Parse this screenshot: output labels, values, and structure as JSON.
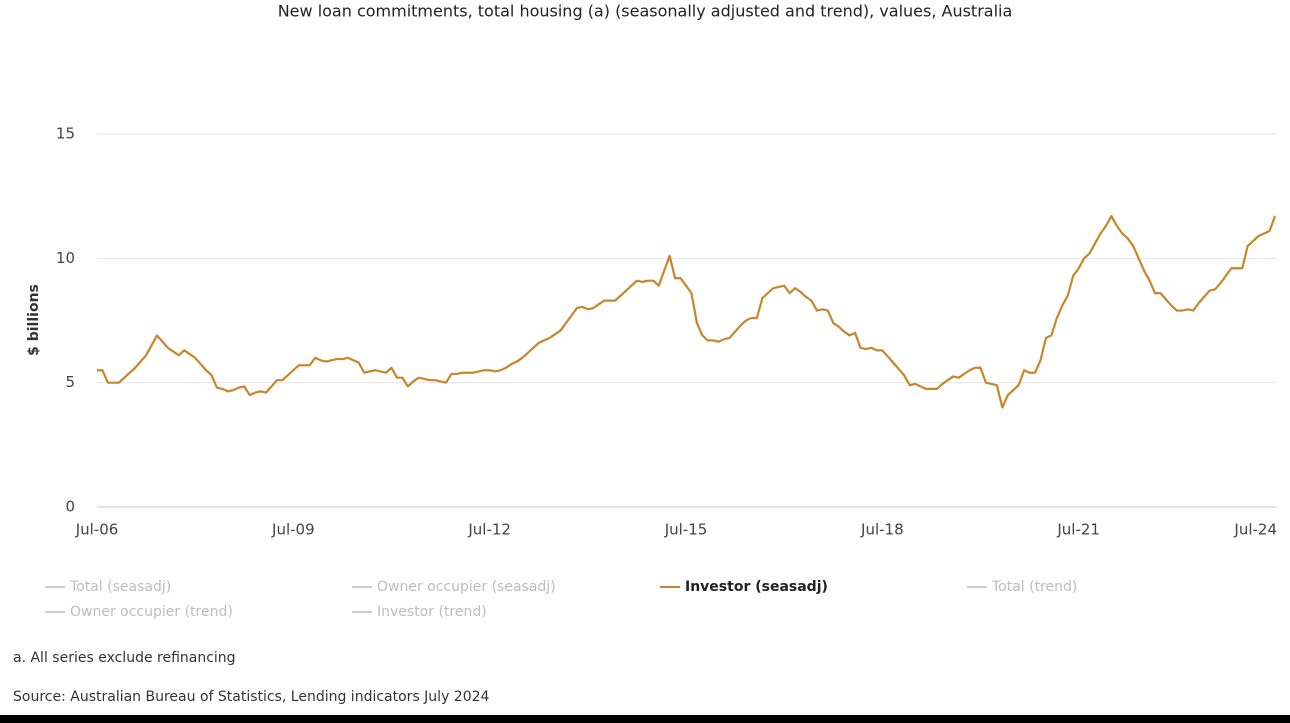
{
  "chart_data": {
    "type": "line",
    "title": "New loan commitments, total housing (a) (seasonally adjusted and trend), values, Australia",
    "y_label": "$ billions",
    "footnote": "a. All series exclude refinancing",
    "source": "Source: Australian Bureau of Statistics, Lending indicators July 2024",
    "ylim": [
      0,
      15
    ],
    "yticks": [
      0,
      5,
      10,
      15
    ],
    "grid": true,
    "categories": [
      "Jul-06",
      null,
      null,
      null,
      null,
      null,
      null,
      null,
      null,
      null,
      null,
      null,
      null,
      null,
      null,
      null,
      null,
      null,
      null,
      null,
      null,
      null,
      null,
      null,
      null,
      null,
      null,
      null,
      null,
      null,
      null,
      null,
      null,
      null,
      null,
      null,
      "Jul-09",
      null,
      null,
      null,
      null,
      null,
      null,
      null,
      null,
      null,
      null,
      null,
      null,
      null,
      null,
      null,
      null,
      null,
      null,
      null,
      null,
      null,
      null,
      null,
      null,
      null,
      null,
      null,
      null,
      null,
      null,
      null,
      null,
      null,
      null,
      null,
      "Jul-12",
      null,
      null,
      null,
      null,
      null,
      null,
      null,
      null,
      null,
      null,
      null,
      null,
      null,
      null,
      null,
      null,
      null,
      null,
      null,
      null,
      null,
      null,
      null,
      null,
      null,
      null,
      null,
      null,
      null,
      null,
      null,
      null,
      null,
      null,
      null,
      "Jul-15",
      null,
      null,
      null,
      null,
      null,
      null,
      null,
      null,
      null,
      null,
      null,
      null,
      null,
      null,
      null,
      null,
      null,
      null,
      null,
      null,
      null,
      null,
      null,
      null,
      null,
      null,
      null,
      null,
      null,
      null,
      null,
      null,
      null,
      null,
      null,
      "Jul-18",
      null,
      null,
      null,
      null,
      null,
      null,
      null,
      null,
      null,
      null,
      null,
      null,
      null,
      null,
      null,
      null,
      null,
      null,
      null,
      null,
      null,
      null,
      null,
      null,
      null,
      null,
      null,
      null,
      null,
      null,
      null,
      null,
      null,
      null,
      null,
      "Jul-21",
      null,
      null,
      null,
      null,
      null,
      null,
      null,
      null,
      null,
      null,
      null,
      null,
      null,
      null,
      null,
      null,
      null,
      null,
      null,
      null,
      null,
      null,
      null,
      null,
      null,
      null,
      null,
      null,
      null,
      null,
      null,
      null,
      null,
      null,
      null,
      "Jul-24"
    ],
    "series": [
      {
        "name": "Total (seasadj)",
        "color": "#cccccc",
        "visible": false
      },
      {
        "name": "Owner occupier (seasadj)",
        "color": "#cccccc",
        "visible": false
      },
      {
        "name": "Investor (seasadj)",
        "color": "#c8862c",
        "visible": true,
        "values": [
          5.5,
          5.5,
          5.0,
          5.0,
          5.0,
          5.2,
          5.4,
          5.6,
          5.85,
          6.1,
          6.5,
          6.9,
          6.65,
          6.4,
          6.25,
          6.1,
          6.3,
          6.15,
          6.0,
          5.75,
          5.5,
          5.3,
          4.8,
          4.75,
          4.65,
          4.7,
          4.8,
          4.85,
          4.5,
          4.6,
          4.65,
          4.6,
          4.85,
          5.1,
          5.1,
          5.3,
          5.5,
          5.7,
          5.7,
          5.7,
          6.0,
          5.9,
          5.85,
          5.9,
          5.95,
          5.95,
          6.0,
          5.9,
          5.8,
          5.4,
          5.45,
          5.5,
          5.45,
          5.4,
          5.6,
          5.2,
          5.2,
          4.85,
          5.05,
          5.2,
          5.15,
          5.1,
          5.1,
          5.05,
          5.0,
          5.35,
          5.35,
          5.4,
          5.4,
          5.4,
          5.45,
          5.5,
          5.5,
          5.45,
          5.5,
          5.6,
          5.75,
          5.85,
          6.0,
          6.2,
          6.4,
          6.6,
          6.7,
          6.8,
          6.95,
          7.1,
          7.4,
          7.7,
          8.0,
          8.05,
          7.95,
          8.0,
          8.15,
          8.3,
          8.3,
          8.3,
          8.5,
          8.7,
          8.9,
          9.1,
          9.05,
          9.1,
          9.1,
          8.9,
          9.5,
          10.1,
          9.2,
          9.2,
          8.9,
          8.6,
          7.4,
          6.9,
          6.7,
          6.7,
          6.65,
          6.75,
          6.8,
          7.05,
          7.3,
          7.5,
          7.6,
          7.6,
          8.4,
          8.6,
          8.8,
          8.85,
          8.9,
          8.6,
          8.8,
          8.65,
          8.45,
          8.3,
          7.9,
          7.95,
          7.9,
          7.4,
          7.25,
          7.05,
          6.9,
          7.0,
          6.4,
          6.35,
          6.4,
          6.3,
          6.3,
          6.05,
          5.8,
          5.55,
          5.3,
          4.9,
          4.95,
          4.85,
          4.75,
          4.75,
          4.75,
          4.95,
          5.1,
          5.25,
          5.2,
          5.35,
          5.5,
          5.6,
          5.6,
          5.0,
          4.95,
          4.9,
          4.0,
          4.5,
          4.7,
          4.9,
          5.5,
          5.4,
          5.4,
          5.9,
          6.8,
          6.9,
          7.6,
          8.1,
          8.5,
          9.3,
          9.6,
          10.0,
          10.2,
          10.6,
          11.0,
          11.3,
          11.7,
          11.3,
          11.0,
          10.8,
          10.5,
          10.0,
          9.5,
          9.1,
          8.6,
          8.6,
          8.35,
          8.1,
          7.9,
          7.9,
          7.95,
          7.9,
          8.2,
          8.45,
          8.7,
          8.75,
          9.0,
          9.3,
          9.6,
          9.6,
          9.6,
          10.5,
          10.7,
          10.9,
          11.0,
          11.1,
          11.7
        ]
      },
      {
        "name": "Total (trend)",
        "color": "#cccccc",
        "visible": false
      },
      {
        "name": "Owner occupier (trend)",
        "color": "#cccccc",
        "visible": false
      },
      {
        "name": "Investor (trend)",
        "color": "#cccccc",
        "visible": false
      }
    ]
  }
}
